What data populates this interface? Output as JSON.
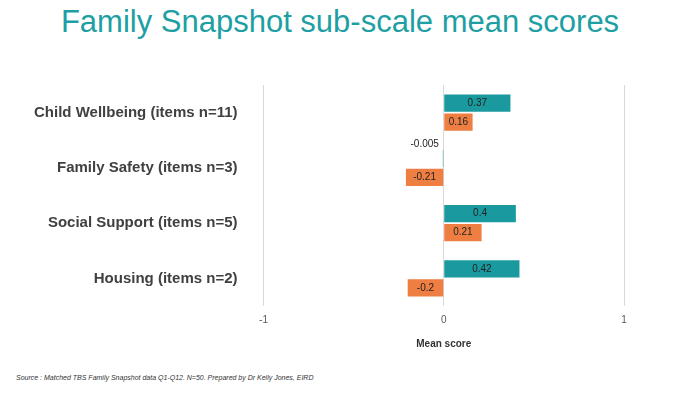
{
  "chart_data": {
    "type": "bar",
    "orientation": "horizontal",
    "title": "Family Snapshot sub-scale mean scores",
    "x_label": "Mean score",
    "annotations": [
      "Source : Matched TBS Family Snapshot data Q1-Q12. N=50. Prepared by Dr Kelly Jones, EIRD"
    ],
    "categories": [
      "Child Wellbeing (items n=11)",
      "Family Safety (items n=3)",
      "Social Support (items n=5)",
      "Housing (items n=2)"
    ],
    "series": [
      {
        "color": "#1a9a9e",
        "values": [
          0.37,
          -0.005,
          0.4,
          0.42
        ]
      },
      {
        "color": "#ef7e42",
        "values": [
          0.16,
          -0.21,
          0.21,
          -0.2
        ]
      }
    ],
    "xlim": [
      -1,
      1
    ],
    "xticks": [
      -1,
      0,
      1
    ],
    "grid": true,
    "data_labels": true
  }
}
